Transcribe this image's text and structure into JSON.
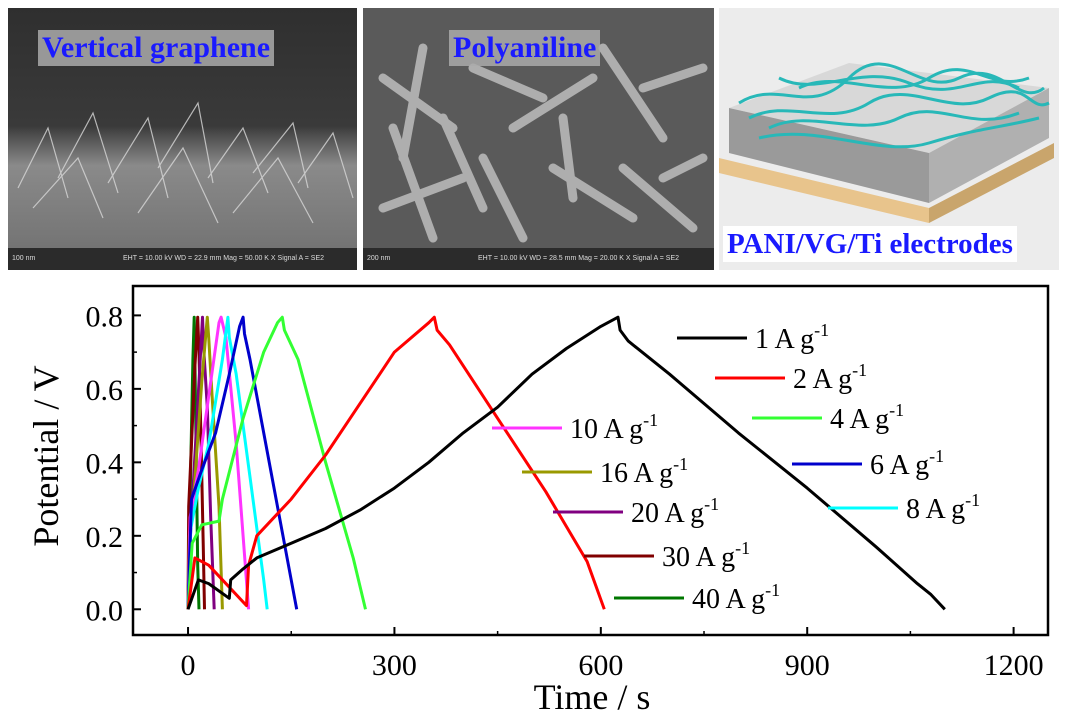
{
  "panels": [
    {
      "title": "Vertical graphene",
      "scale": "100 nm",
      "info": "EHT = 10.00 kV    WD = 22.9 mm    Mag =  50.00 K X  Signal A = SE2"
    },
    {
      "title": "Polyaniline",
      "scale": "200 nm",
      "info": "EHT = 10.00 kV    WD = 28.5 mm    Mag =  20.00 K X  Signal A = SE2"
    },
    {
      "title": "PANI/VG/Ti electrodes"
    }
  ],
  "colors": {
    "1": "#000000",
    "2": "#ff0000",
    "4": "#33ff33",
    "6": "#0000cc",
    "8": "#00ffff",
    "10": "#ff33ff",
    "16": "#999900",
    "20": "#800080",
    "30": "#800000",
    "40": "#007700"
  },
  "chart_data": {
    "type": "line",
    "xlabel": "Time / s",
    "ylabel": "Potential / V",
    "xlim": [
      -80,
      1250
    ],
    "ylim": [
      -0.07,
      0.88
    ],
    "xticks": [
      0,
      300,
      600,
      900,
      1200
    ],
    "yticks": [
      0.0,
      0.2,
      0.4,
      0.6,
      0.8
    ],
    "xtick_labels": [
      "0",
      "300",
      "600",
      "900",
      "1200"
    ],
    "ytick_labels": [
      "0.0",
      "0.2",
      "0.4",
      "0.6",
      "0.8"
    ],
    "series": [
      {
        "name": "1 A g",
        "sup": "-1",
        "color": "#000000",
        "x": [
          0,
          15,
          30,
          60,
          62,
          80,
          100,
          150,
          200,
          250,
          300,
          350,
          400,
          450,
          500,
          550,
          600,
          625,
          628,
          640,
          700,
          800,
          900,
          1000,
          1060,
          1080,
          1100
        ],
        "y": [
          0,
          0.08,
          0.07,
          0.03,
          0.08,
          0.11,
          0.14,
          0.18,
          0.22,
          0.27,
          0.33,
          0.4,
          0.48,
          0.55,
          0.64,
          0.71,
          0.77,
          0.795,
          0.76,
          0.73,
          0.64,
          0.48,
          0.33,
          0.17,
          0.07,
          0.04,
          0
        ]
      },
      {
        "name": "2 A g",
        "sup": "-1",
        "color": "#ff0000",
        "x": [
          0,
          10,
          30,
          60,
          85,
          88,
          100,
          150,
          200,
          250,
          300,
          350,
          358,
          362,
          380,
          450,
          520,
          580,
          605
        ],
        "y": [
          0,
          0.14,
          0.12,
          0.06,
          0.01,
          0.12,
          0.2,
          0.3,
          0.42,
          0.56,
          0.7,
          0.78,
          0.795,
          0.76,
          0.72,
          0.52,
          0.32,
          0.13,
          0
        ]
      },
      {
        "name": "4 A g",
        "sup": "-1",
        "color": "#33ff33",
        "x": [
          0,
          6,
          20,
          45,
          50,
          80,
          110,
          130,
          137,
          140,
          160,
          200,
          240,
          258
        ],
        "y": [
          0,
          0.18,
          0.23,
          0.24,
          0.3,
          0.52,
          0.7,
          0.78,
          0.795,
          0.76,
          0.68,
          0.4,
          0.14,
          0
        ]
      },
      {
        "name": "6  A g",
        "sup": "-1",
        "color": "#0000cc",
        "x": [
          0,
          5,
          20,
          40,
          60,
          75,
          80,
          82,
          90,
          120,
          150,
          158
        ],
        "y": [
          0,
          0.3,
          0.38,
          0.48,
          0.64,
          0.77,
          0.795,
          0.75,
          0.68,
          0.38,
          0.08,
          0
        ]
      },
      {
        "name": "8  A g",
        "sup": "-1",
        "color": "#00ffff",
        "x": [
          0,
          4,
          15,
          30,
          50,
          58,
          60,
          70,
          90,
          110,
          115
        ],
        "y": [
          0,
          0.22,
          0.33,
          0.45,
          0.68,
          0.795,
          0.74,
          0.64,
          0.36,
          0.08,
          0
        ]
      },
      {
        "name": "10  A g",
        "sup": "-1",
        "color": "#ff33ff",
        "x": [
          0,
          3,
          15,
          30,
          45,
          48,
          55,
          70,
          88
        ],
        "y": [
          0,
          0.25,
          0.38,
          0.58,
          0.78,
          0.795,
          0.74,
          0.45,
          0
        ]
      },
      {
        "name": "16 A g",
        "sup": "-1",
        "color": "#999900",
        "x": [
          0,
          2,
          8,
          20,
          28,
          30,
          35,
          45,
          50
        ],
        "y": [
          0,
          0.2,
          0.3,
          0.62,
          0.795,
          0.74,
          0.58,
          0.28,
          0
        ]
      },
      {
        "name": "20 A g",
        "sup": "-1",
        "color": "#800080",
        "x": [
          0,
          2,
          8,
          16,
          21,
          23,
          28,
          33,
          38
        ],
        "y": [
          0,
          0.15,
          0.35,
          0.62,
          0.795,
          0.7,
          0.55,
          0.25,
          0
        ]
      },
      {
        "name": "30 A g",
        "sup": "-1",
        "color": "#800000",
        "x": [
          0,
          1,
          5,
          10,
          14,
          16,
          19,
          22,
          24
        ],
        "y": [
          0,
          0.28,
          0.45,
          0.66,
          0.795,
          0.7,
          0.45,
          0.18,
          0
        ]
      },
      {
        "name": "40  A g",
        "sup": "-1",
        "color": "#007700",
        "x": [
          0,
          1,
          4,
          7,
          9,
          10,
          12,
          14,
          16
        ],
        "y": [
          0,
          0.1,
          0.4,
          0.68,
          0.795,
          0.68,
          0.4,
          0.12,
          0
        ]
      }
    ]
  }
}
